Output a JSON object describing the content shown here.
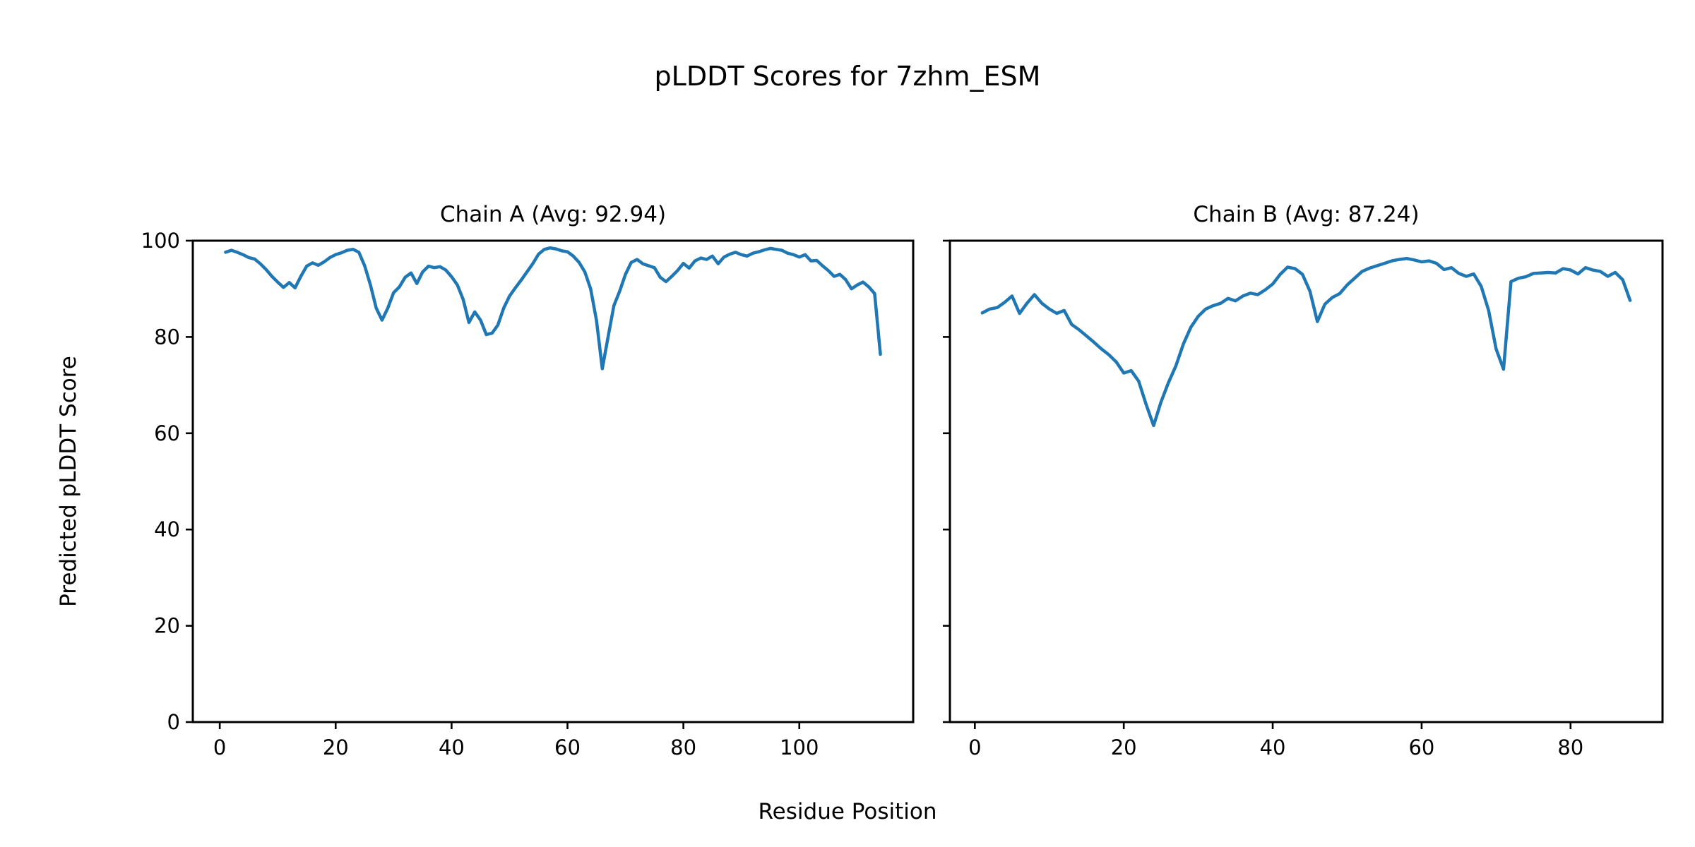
{
  "suptitle": "pLDDT Scores for 7zhm_ESM",
  "xlabel": "Residue Position",
  "ylabel": "Predicted pLDDT Score",
  "line_color": "#1f77b4",
  "axis_color": "#000000",
  "background_color": "#ffffff",
  "chart_data": [
    {
      "type": "line",
      "title": "Chain A (Avg: 92.94)",
      "avg": 92.94,
      "x_start": 1,
      "xlabel": "Residue Position",
      "ylabel": "Predicted pLDDT Score",
      "xticks": [
        0,
        20,
        40,
        60,
        80,
        100
      ],
      "yticks": [
        0,
        20,
        40,
        60,
        80,
        100
      ],
      "ylim": [
        0,
        100
      ],
      "xlim": [
        -4.65,
        119.65
      ],
      "grid": false,
      "legend": "none",
      "color": "#1f77b4",
      "values": [
        97.6,
        98.0,
        97.6,
        97.1,
        96.5,
        96.2,
        95.2,
        94.0,
        92.6,
        91.4,
        90.3,
        91.3,
        90.2,
        92.6,
        94.7,
        95.4,
        94.9,
        95.6,
        96.5,
        97.1,
        97.5,
        98.0,
        98.2,
        97.6,
        94.8,
        90.8,
        86.0,
        83.5,
        86.0,
        89.2,
        90.4,
        92.4,
        93.3,
        91.1,
        93.5,
        94.7,
        94.4,
        94.6,
        93.9,
        92.5,
        90.8,
        87.8,
        83.0,
        85.2,
        83.5,
        80.5,
        80.8,
        82.5,
        86.0,
        88.5,
        90.2,
        91.8,
        93.5,
        95.2,
        97.2,
        98.2,
        98.5,
        98.3,
        97.9,
        97.7,
        96.8,
        95.5,
        93.5,
        90.0,
        83.5,
        73.4,
        80.0,
        86.5,
        89.5,
        93.0,
        95.5,
        96.1,
        95.2,
        94.8,
        94.4,
        92.4,
        91.5,
        92.6,
        93.8,
        95.3,
        94.3,
        95.8,
        96.4,
        96.1,
        96.8,
        95.2,
        96.6,
        97.2,
        97.6,
        97.1,
        96.8,
        97.4,
        97.7,
        98.1,
        98.4,
        98.2,
        98.0,
        97.4,
        97.1,
        96.6,
        97.1,
        95.8,
        95.9,
        94.8,
        93.8,
        92.6,
        93.0,
        91.9,
        90.0,
        90.8,
        91.4,
        90.4,
        89.0,
        76.4
      ]
    },
    {
      "type": "line",
      "title": "Chain B (Avg: 87.24)",
      "avg": 87.24,
      "x_start": 1,
      "xlabel": "Residue Position",
      "ylabel": "Predicted pLDDT Score",
      "xticks": [
        0,
        20,
        40,
        60,
        80
      ],
      "yticks": [
        0,
        20,
        40,
        60,
        80,
        100
      ],
      "ylim": [
        0,
        100
      ],
      "xlim": [
        -3.35,
        92.35
      ],
      "grid": false,
      "legend": "none",
      "color": "#1f77b4",
      "values": [
        85.0,
        85.8,
        86.1,
        87.2,
        88.5,
        84.9,
        87.0,
        88.8,
        87.0,
        85.8,
        84.9,
        85.5,
        82.6,
        81.5,
        80.2,
        78.9,
        77.5,
        76.3,
        74.8,
        72.5,
        73.0,
        70.8,
        66.0,
        61.6,
        66.5,
        70.5,
        74.0,
        78.5,
        82.0,
        84.3,
        85.8,
        86.5,
        87.0,
        88.0,
        87.5,
        88.5,
        89.1,
        88.8,
        89.8,
        91.0,
        93.0,
        94.5,
        94.2,
        93.0,
        89.5,
        83.2,
        86.8,
        88.2,
        89.0,
        90.8,
        92.2,
        93.6,
        94.3,
        94.8,
        95.3,
        95.8,
        96.1,
        96.3,
        96.0,
        95.6,
        95.8,
        95.3,
        94.0,
        94.4,
        93.2,
        92.6,
        93.1,
        90.5,
        85.5,
        77.5,
        73.3,
        91.5,
        92.2,
        92.5,
        93.2,
        93.3,
        93.4,
        93.3,
        94.2,
        93.9,
        93.1,
        94.4,
        93.9,
        93.6,
        92.6,
        93.4,
        91.9,
        87.6
      ]
    }
  ]
}
